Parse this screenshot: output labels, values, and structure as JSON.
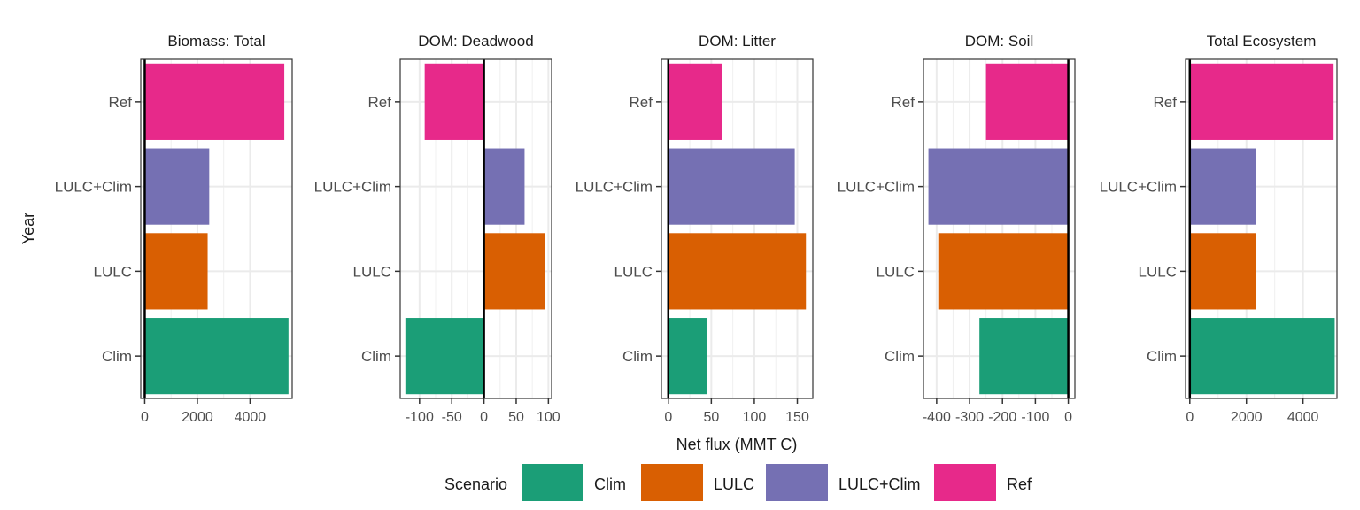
{
  "chart_data": {
    "type": "bar",
    "orientation": "horizontal",
    "xlabel": "Net flux (MMT C)",
    "ylabel": "Year",
    "categories": [
      "Clim",
      "LULC",
      "LULC+Clim",
      "Ref"
    ],
    "grid": true,
    "legend": {
      "title": "Scenario",
      "position": "bottom",
      "items": [
        {
          "name": "Clim",
          "color": "#1b9e77"
        },
        {
          "name": "LULC",
          "color": "#d95f02"
        },
        {
          "name": "LULC+Clim",
          "color": "#7570b3"
        },
        {
          "name": "Ref",
          "color": "#e7298a"
        }
      ]
    },
    "panels": [
      {
        "title": "Biomass: Total",
        "xlim": [
          -150,
          5600
        ],
        "ticks": [
          0,
          2000,
          4000
        ],
        "tick_labels": [
          "0",
          "2000",
          "4000"
        ],
        "values": [
          5460,
          2390,
          2450,
          5300
        ]
      },
      {
        "title": "DOM: Deadwood",
        "xlim": [
          -130,
          105
        ],
        "ticks": [
          -100,
          -50,
          0,
          50,
          100
        ],
        "tick_labels": [
          "-100",
          "-50",
          "0",
          "50",
          "100"
        ],
        "values": [
          -122,
          95,
          63,
          -92
        ]
      },
      {
        "title": "DOM: Litter",
        "xlim": [
          -8,
          168
        ],
        "ticks": [
          0,
          50,
          100,
          150
        ],
        "tick_labels": [
          "0",
          "50",
          "100",
          "150"
        ],
        "values": [
          45,
          160,
          147,
          63
        ]
      },
      {
        "title": "DOM: Soil",
        "xlim": [
          -440,
          20
        ],
        "ticks": [
          -400,
          -300,
          -200,
          -100,
          0
        ],
        "tick_labels": [
          "-400",
          "-300",
          "-200",
          "-100",
          "0"
        ],
        "values": [
          -270,
          -395,
          -425,
          -250
        ]
      },
      {
        "title": "Total Ecosystem",
        "xlim": [
          -150,
          5200
        ],
        "ticks": [
          0,
          2000,
          4000
        ],
        "tick_labels": [
          "0",
          "2000",
          "4000"
        ],
        "values": [
          5120,
          2330,
          2340,
          5080
        ]
      }
    ]
  }
}
